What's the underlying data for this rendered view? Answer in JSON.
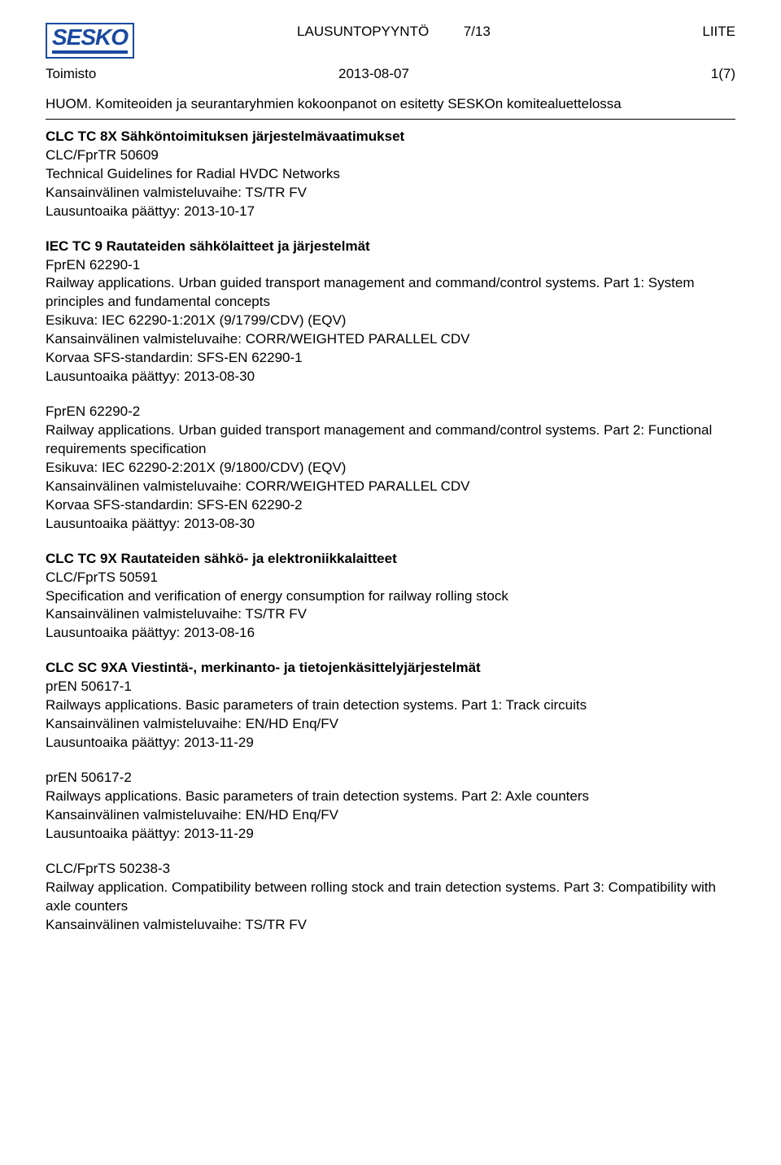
{
  "logo": {
    "text": "SESKO",
    "brandColor": "#1a4aa0"
  },
  "header": {
    "docType": "LAUSUNTOPYYNTÖ",
    "docNum": "7/13",
    "attachment": "LIITE",
    "office": "Toimisto",
    "date": "2013-08-07",
    "page": "1(7)"
  },
  "note": "HUOM. Komiteoiden ja seurantaryhmien kokoonpanot on esitetty SESKOn komitealuettelossa",
  "sections": [
    {
      "title": "CLC TC 8X Sähköntoimituksen järjestelmävaatimukset",
      "entries": [
        {
          "code": "CLC/FprTR 50609",
          "desc": "Technical Guidelines for Radial HVDC Networks",
          "phase": "Kansainvälinen valmisteluvaihe: TS/TR FV",
          "deadline": "Lausuntoaika päättyy: 2013-10-17"
        }
      ]
    },
    {
      "title": "IEC TC 9 Rautateiden sähkölaitteet ja järjestelmät",
      "entries": [
        {
          "code": "FprEN 62290-1",
          "desc": "Railway applications. Urban guided transport management and command/control systems. Part 1: System principles and fundamental concepts",
          "esikuva": "Esikuva: IEC 62290-1:201X (9/1799/CDV) (EQV)",
          "phase": "Kansainvälinen valmisteluvaihe: CORR/WEIGHTED PARALLEL CDV",
          "replaces": "Korvaa SFS-standardin: SFS-EN 62290-1",
          "deadline": "Lausuntoaika päättyy: 2013-08-30"
        },
        {
          "code": "FprEN 62290-2",
          "desc": "Railway applications. Urban guided transport management and command/control systems. Part 2: Functional requirements specification",
          "esikuva": "Esikuva: IEC 62290-2:201X (9/1800/CDV) (EQV)",
          "phase": "Kansainvälinen valmisteluvaihe: CORR/WEIGHTED PARALLEL CDV",
          "replaces": "Korvaa SFS-standardin: SFS-EN 62290-2",
          "deadline": "Lausuntoaika päättyy: 2013-08-30"
        }
      ]
    },
    {
      "title": "CLC TC 9X Rautateiden sähkö- ja elektroniikkalaitteet",
      "entries": [
        {
          "code": "CLC/FprTS 50591",
          "desc": "Specification and verification of energy consumption for railway rolling stock",
          "phase": "Kansainvälinen valmisteluvaihe: TS/TR FV",
          "deadline": "Lausuntoaika päättyy: 2013-08-16"
        }
      ]
    },
    {
      "title": "CLC SC 9XA Viestintä-, merkinanto- ja tietojenkäsittelyjärjestelmät",
      "entries": [
        {
          "code": "prEN 50617-1",
          "desc": "Railways applications. Basic parameters of train detection systems. Part 1: Track circuits",
          "phase": "Kansainvälinen valmisteluvaihe: EN/HD Enq/FV",
          "deadline": "Lausuntoaika päättyy: 2013-11-29"
        },
        {
          "code": "prEN 50617-2",
          "desc": "Railways applications. Basic parameters of train detection systems. Part 2: Axle counters",
          "phase": "Kansainvälinen valmisteluvaihe: EN/HD Enq/FV",
          "deadline": "Lausuntoaika päättyy: 2013-11-29"
        },
        {
          "code": "CLC/FprTS 50238-3",
          "desc": "Railway application. Compatibility between rolling stock and train detection systems. Part 3: Compatibility with axle counters",
          "phase": "Kansainvälinen valmisteluvaihe: TS/TR FV"
        }
      ]
    }
  ]
}
